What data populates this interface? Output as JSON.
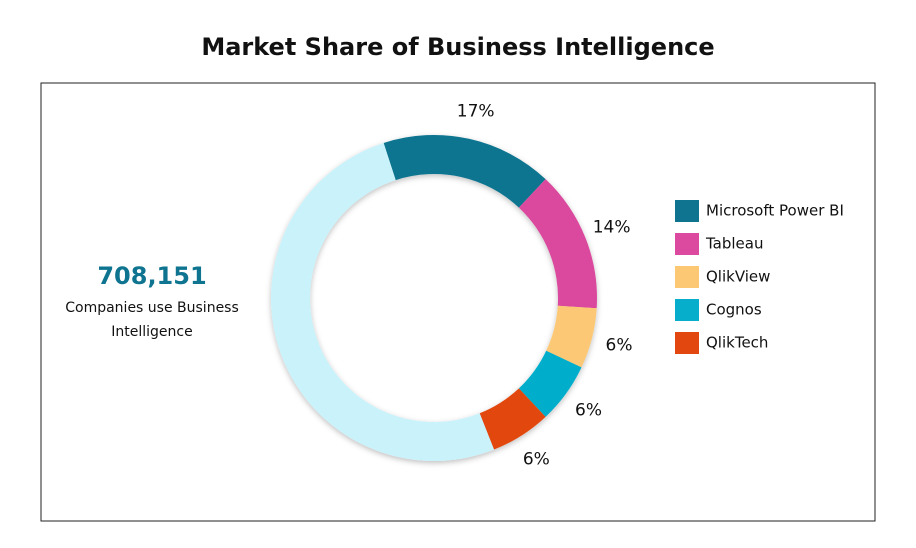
{
  "chart_data": {
    "type": "donut",
    "title": "Market Share of Business Intelligence",
    "categories": [
      "Microsoft Power BI",
      "Tableau",
      "QlikView",
      "Cognos",
      "QlikTech",
      null
    ],
    "values": [
      17,
      14,
      6,
      6,
      6,
      51
    ],
    "value_labels": [
      "17%",
      "14%",
      "6%",
      "6%",
      "6%",
      null
    ],
    "colors": [
      "#0e7490",
      "#db4a9e",
      "#fcc874",
      "#06aecb",
      "#e2470f",
      "#c9f2fb"
    ],
    "stat": "708,151",
    "stat_caption": "Companies use Business Intelligence"
  }
}
